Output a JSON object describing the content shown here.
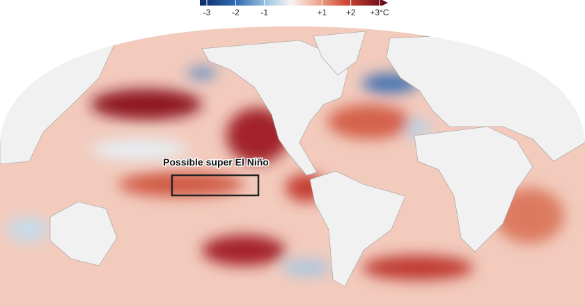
{
  "legend": {
    "ticks": [
      {
        "value": -3,
        "label": "-3"
      },
      {
        "value": -2,
        "label": "-2"
      },
      {
        "value": -1,
        "label": "-1"
      },
      {
        "value": 1,
        "label": "+1"
      },
      {
        "value": 2,
        "label": "+2"
      },
      {
        "value": 3,
        "label": "+3°C"
      }
    ]
  },
  "annotation": "Possible super El Niño"
}
